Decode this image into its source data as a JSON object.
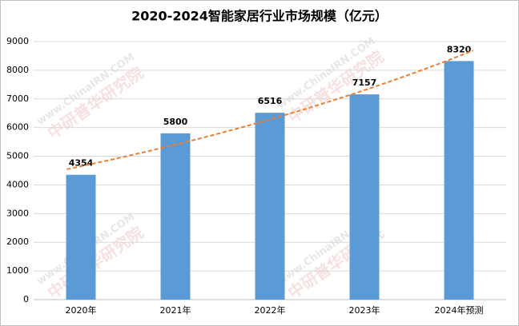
{
  "chart_data": {
    "type": "bar",
    "title": "2020-2024智能家居行业市场规模（亿元）",
    "categories": [
      "2020年",
      "2021年",
      "2022年",
      "2023年",
      "2024年预测"
    ],
    "values": [
      4354,
      5800,
      6516,
      7157,
      8320
    ],
    "color": "#5b9bd5",
    "ylim": [
      0,
      9000
    ],
    "yticks": [
      0,
      1000,
      2000,
      3000,
      4000,
      5000,
      6000,
      7000,
      8000,
      9000
    ],
    "grid": true,
    "data_labels": true,
    "trendline": "exponential",
    "trendline_color": "#ed7d31",
    "watermark": [
      "www.ChinaIRN.COM",
      "中研普华研究院"
    ]
  }
}
